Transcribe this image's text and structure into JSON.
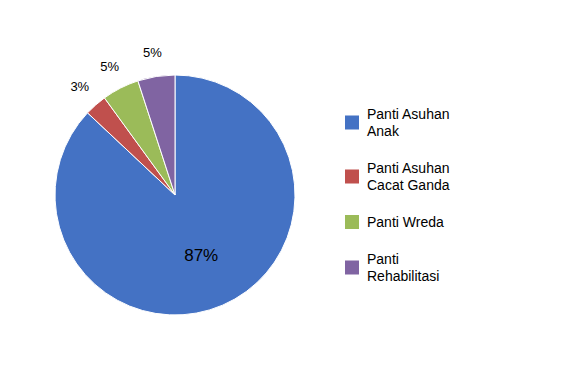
{
  "chart_data": {
    "type": "pie",
    "categories": [
      "Panti Asuhan\nAnak",
      "Panti Asuhan\nCacat Ganda",
      "Panti Wreda",
      "Panti\nRehabilitasi"
    ],
    "values": [
      87,
      3,
      5,
      5
    ],
    "value_labels": [
      "87%",
      "3%",
      "5%",
      "5%"
    ],
    "colors": [
      "#4472C4",
      "#C0504D",
      "#9BBB59",
      "#8064A2"
    ],
    "data_labels": true,
    "legend": "right"
  }
}
